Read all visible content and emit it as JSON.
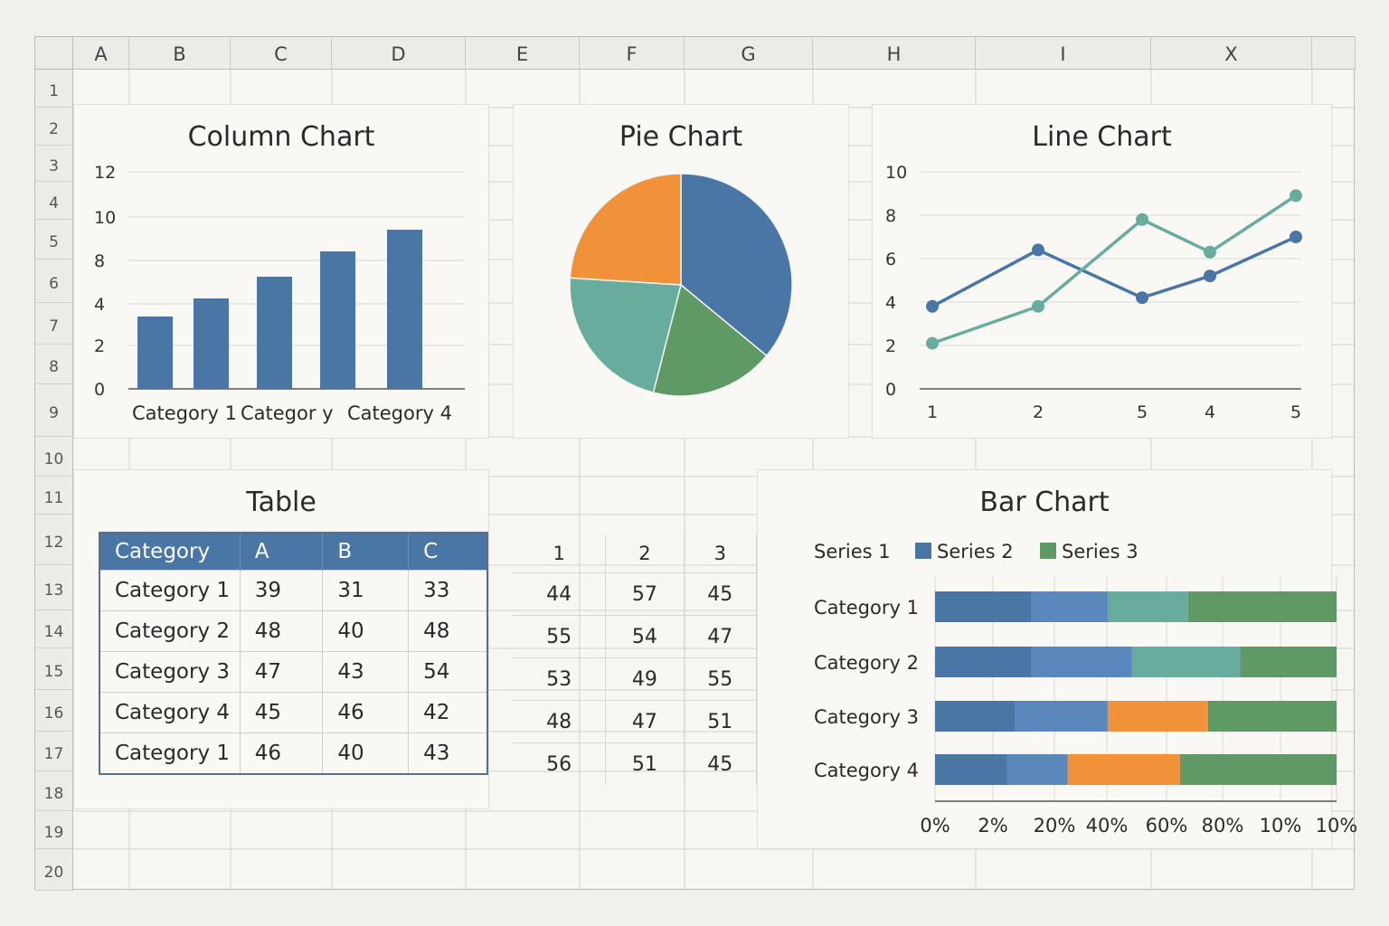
{
  "columns": [
    "A",
    "B",
    "C",
    "D",
    "E",
    "F",
    "G",
    "H",
    "I",
    "X"
  ],
  "rows": [
    "1",
    "2",
    "3",
    "4",
    "5",
    "6",
    "7",
    "8",
    "9",
    "10",
    "11",
    "12",
    "13",
    "14",
    "15",
    "16",
    "17",
    "18",
    "19",
    "20"
  ],
  "colors": {
    "blue": "#4a76a6",
    "orange": "#f1923b",
    "teal": "#67ac9d",
    "green": "#5f9a66",
    "lightblue": "#5a88bd"
  },
  "chart_data": [
    {
      "type": "bar",
      "title": "Column Chart",
      "categories": [
        "Category 1",
        "",
        "Categor y",
        "",
        "Category 4"
      ],
      "values": [
        4,
        5,
        6.2,
        7.6,
        8.8
      ],
      "yticks": [
        12,
        10,
        8,
        4,
        2,
        0
      ]
    },
    {
      "type": "pie",
      "title": "Pie Chart",
      "slices": [
        {
          "value": 36,
          "color": "#4a76a6"
        },
        {
          "value": 18,
          "color": "#5f9a66"
        },
        {
          "value": 22,
          "color": "#67ac9d"
        },
        {
          "value": 24,
          "color": "#f1923b"
        }
      ]
    },
    {
      "type": "line",
      "title": "Line Chart",
      "x": [
        "1",
        "2",
        "5",
        "4",
        "5"
      ],
      "yticks": [
        10,
        8,
        6,
        4,
        2,
        0
      ],
      "ylim": [
        0,
        10
      ],
      "series": [
        {
          "values": [
            3.8,
            6.4,
            4.2,
            5.2,
            7.0
          ],
          "color": "#4a76a6"
        },
        {
          "values": [
            2.1,
            3.8,
            7.8,
            6.3,
            8.9
          ],
          "color": "#67ac9d"
        }
      ]
    },
    {
      "type": "table",
      "title": "Table",
      "headers": [
        "Category",
        "A",
        "B",
        "C"
      ],
      "rows": [
        [
          "Category 1",
          "39",
          "31",
          "33"
        ],
        [
          "Category 2",
          "48",
          "40",
          "48"
        ],
        [
          "Category 3",
          "47",
          "43",
          "54"
        ],
        [
          "Category 4",
          "45",
          "46",
          "42"
        ],
        [
          "Category 1",
          "46",
          "40",
          "43"
        ]
      ]
    },
    {
      "type": "table",
      "headers": [
        "1",
        "2",
        "3"
      ],
      "rows": [
        [
          "44",
          "57",
          "45"
        ],
        [
          "55",
          "54",
          "47"
        ],
        [
          "53",
          "49",
          "55"
        ],
        [
          "48",
          "47",
          "51"
        ],
        [
          "56",
          "51",
          "45"
        ]
      ]
    },
    {
      "type": "bar",
      "orientation": "horizontal",
      "stacked": true,
      "title": "Bar Chart",
      "legend": [
        {
          "name": "Series 1",
          "color": null
        },
        {
          "name": "Series 2",
          "color": "#4a76a6"
        },
        {
          "name": "Series 3",
          "color": "#5f9a66"
        }
      ],
      "categories": [
        "Category 1",
        "Category 2",
        "Category 3",
        "Category 4"
      ],
      "xticks": [
        "0%",
        "2%",
        "20%",
        "40%",
        "60%",
        "80%",
        "10%",
        "10%"
      ],
      "segments": [
        [
          {
            "share": 24,
            "color": "#4a76a6"
          },
          {
            "share": 19,
            "color": "#5a88bd"
          },
          {
            "share": 20,
            "color": "#67ac9d"
          },
          {
            "share": 37,
            "color": "#5f9a66"
          }
        ],
        [
          {
            "share": 24,
            "color": "#4a76a6"
          },
          {
            "share": 25,
            "color": "#5a88bd"
          },
          {
            "share": 27,
            "color": "#67ac9d"
          },
          {
            "share": 24,
            "color": "#5f9a66"
          }
        ],
        [
          {
            "share": 20,
            "color": "#4a76a6"
          },
          {
            "share": 23,
            "color": "#5a88bd"
          },
          {
            "share": 25,
            "color": "#f1923b"
          },
          {
            "share": 32,
            "color": "#5f9a66"
          }
        ],
        [
          {
            "share": 18,
            "color": "#4a76a6"
          },
          {
            "share": 15,
            "color": "#5a88bd"
          },
          {
            "share": 28,
            "color": "#f1923b"
          },
          {
            "share": 39,
            "color": "#5f9a66"
          }
        ]
      ]
    }
  ]
}
